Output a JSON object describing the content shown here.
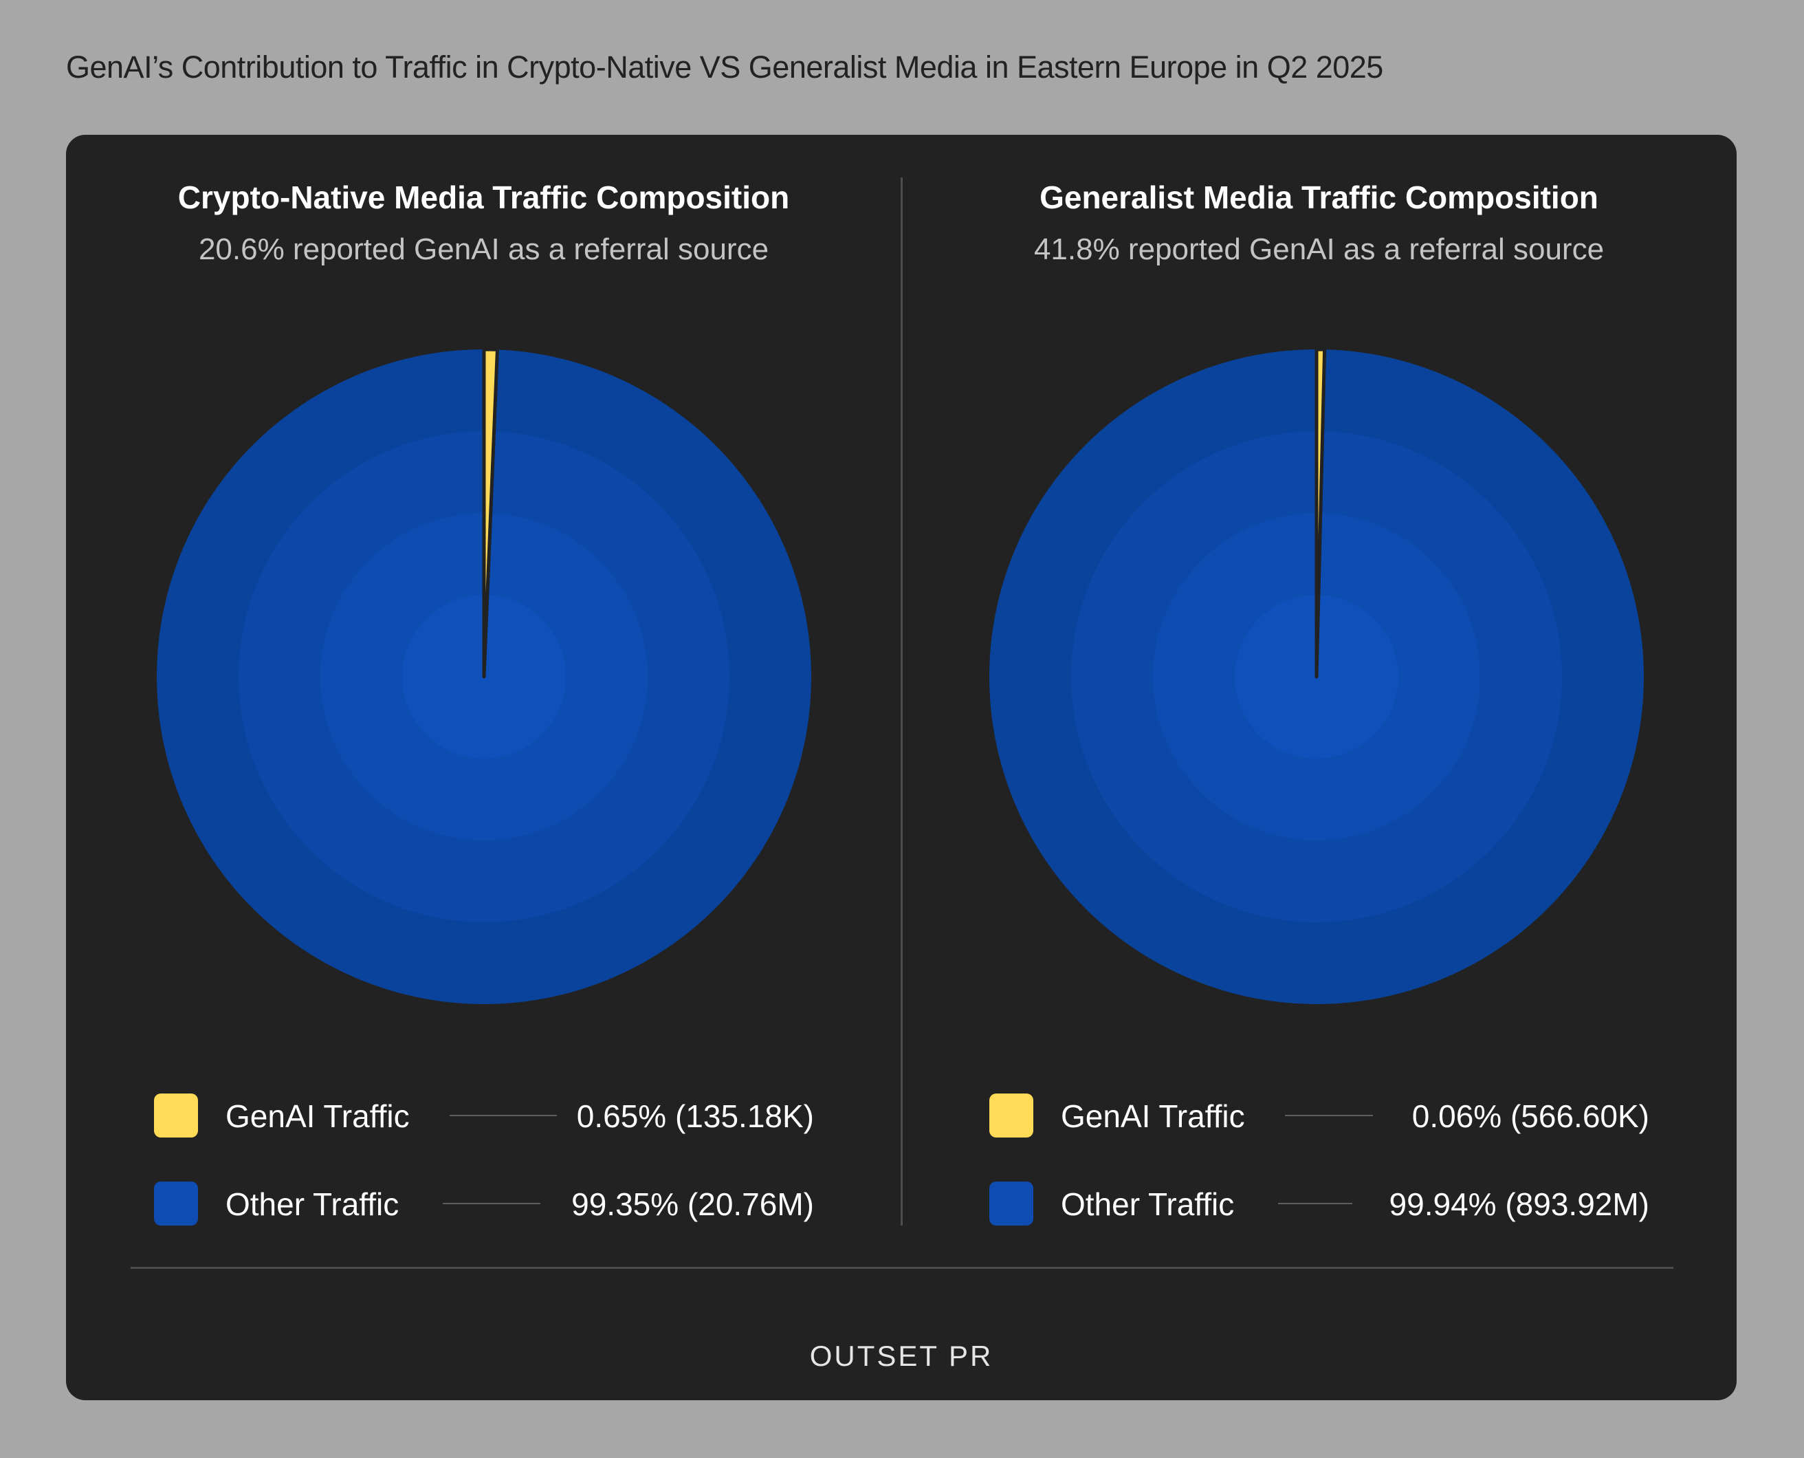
{
  "title": "GenAI’s Contribution to Traffic in Crypto-Native VS Generalist Media in Eastern Europe in Q2 2025",
  "brand": "OUTSET PR",
  "colors": {
    "genai": "#ffdb58",
    "other": "#0f4db3",
    "card": "#222222",
    "ring_1": "#0a439c",
    "ring_2": "#0c48a8",
    "ring_3": "#0d4cb0",
    "ring_4": "#0e51ba"
  },
  "chart_data": [
    {
      "type": "pie",
      "title": "Crypto-Native Media Traffic Composition",
      "subtitle": "20.6% reported GenAI as a referral source",
      "start_angle": "12 o'clock",
      "direction": "clockwise",
      "slices": [
        {
          "label": "GenAI Traffic",
          "value": 0.65,
          "display": "0.65% (135.18K)",
          "color": "#ffdb58"
        },
        {
          "label": "Other Traffic",
          "value": 99.35,
          "display": "99.35% (20.76M)",
          "color": "#0f4db3"
        }
      ]
    },
    {
      "type": "pie",
      "title": "Generalist Media Traffic Composition",
      "subtitle": "41.8% reported GenAI as a referral source",
      "start_angle": "12 o'clock",
      "direction": "clockwise",
      "slices": [
        {
          "label": "GenAI Traffic",
          "value": 0.06,
          "display": "0.06% (566.60K)",
          "color": "#ffdb58"
        },
        {
          "label": "Other Traffic",
          "value": 99.94,
          "display": "99.94% (893.92M)",
          "color": "#0f4db3"
        }
      ]
    }
  ]
}
